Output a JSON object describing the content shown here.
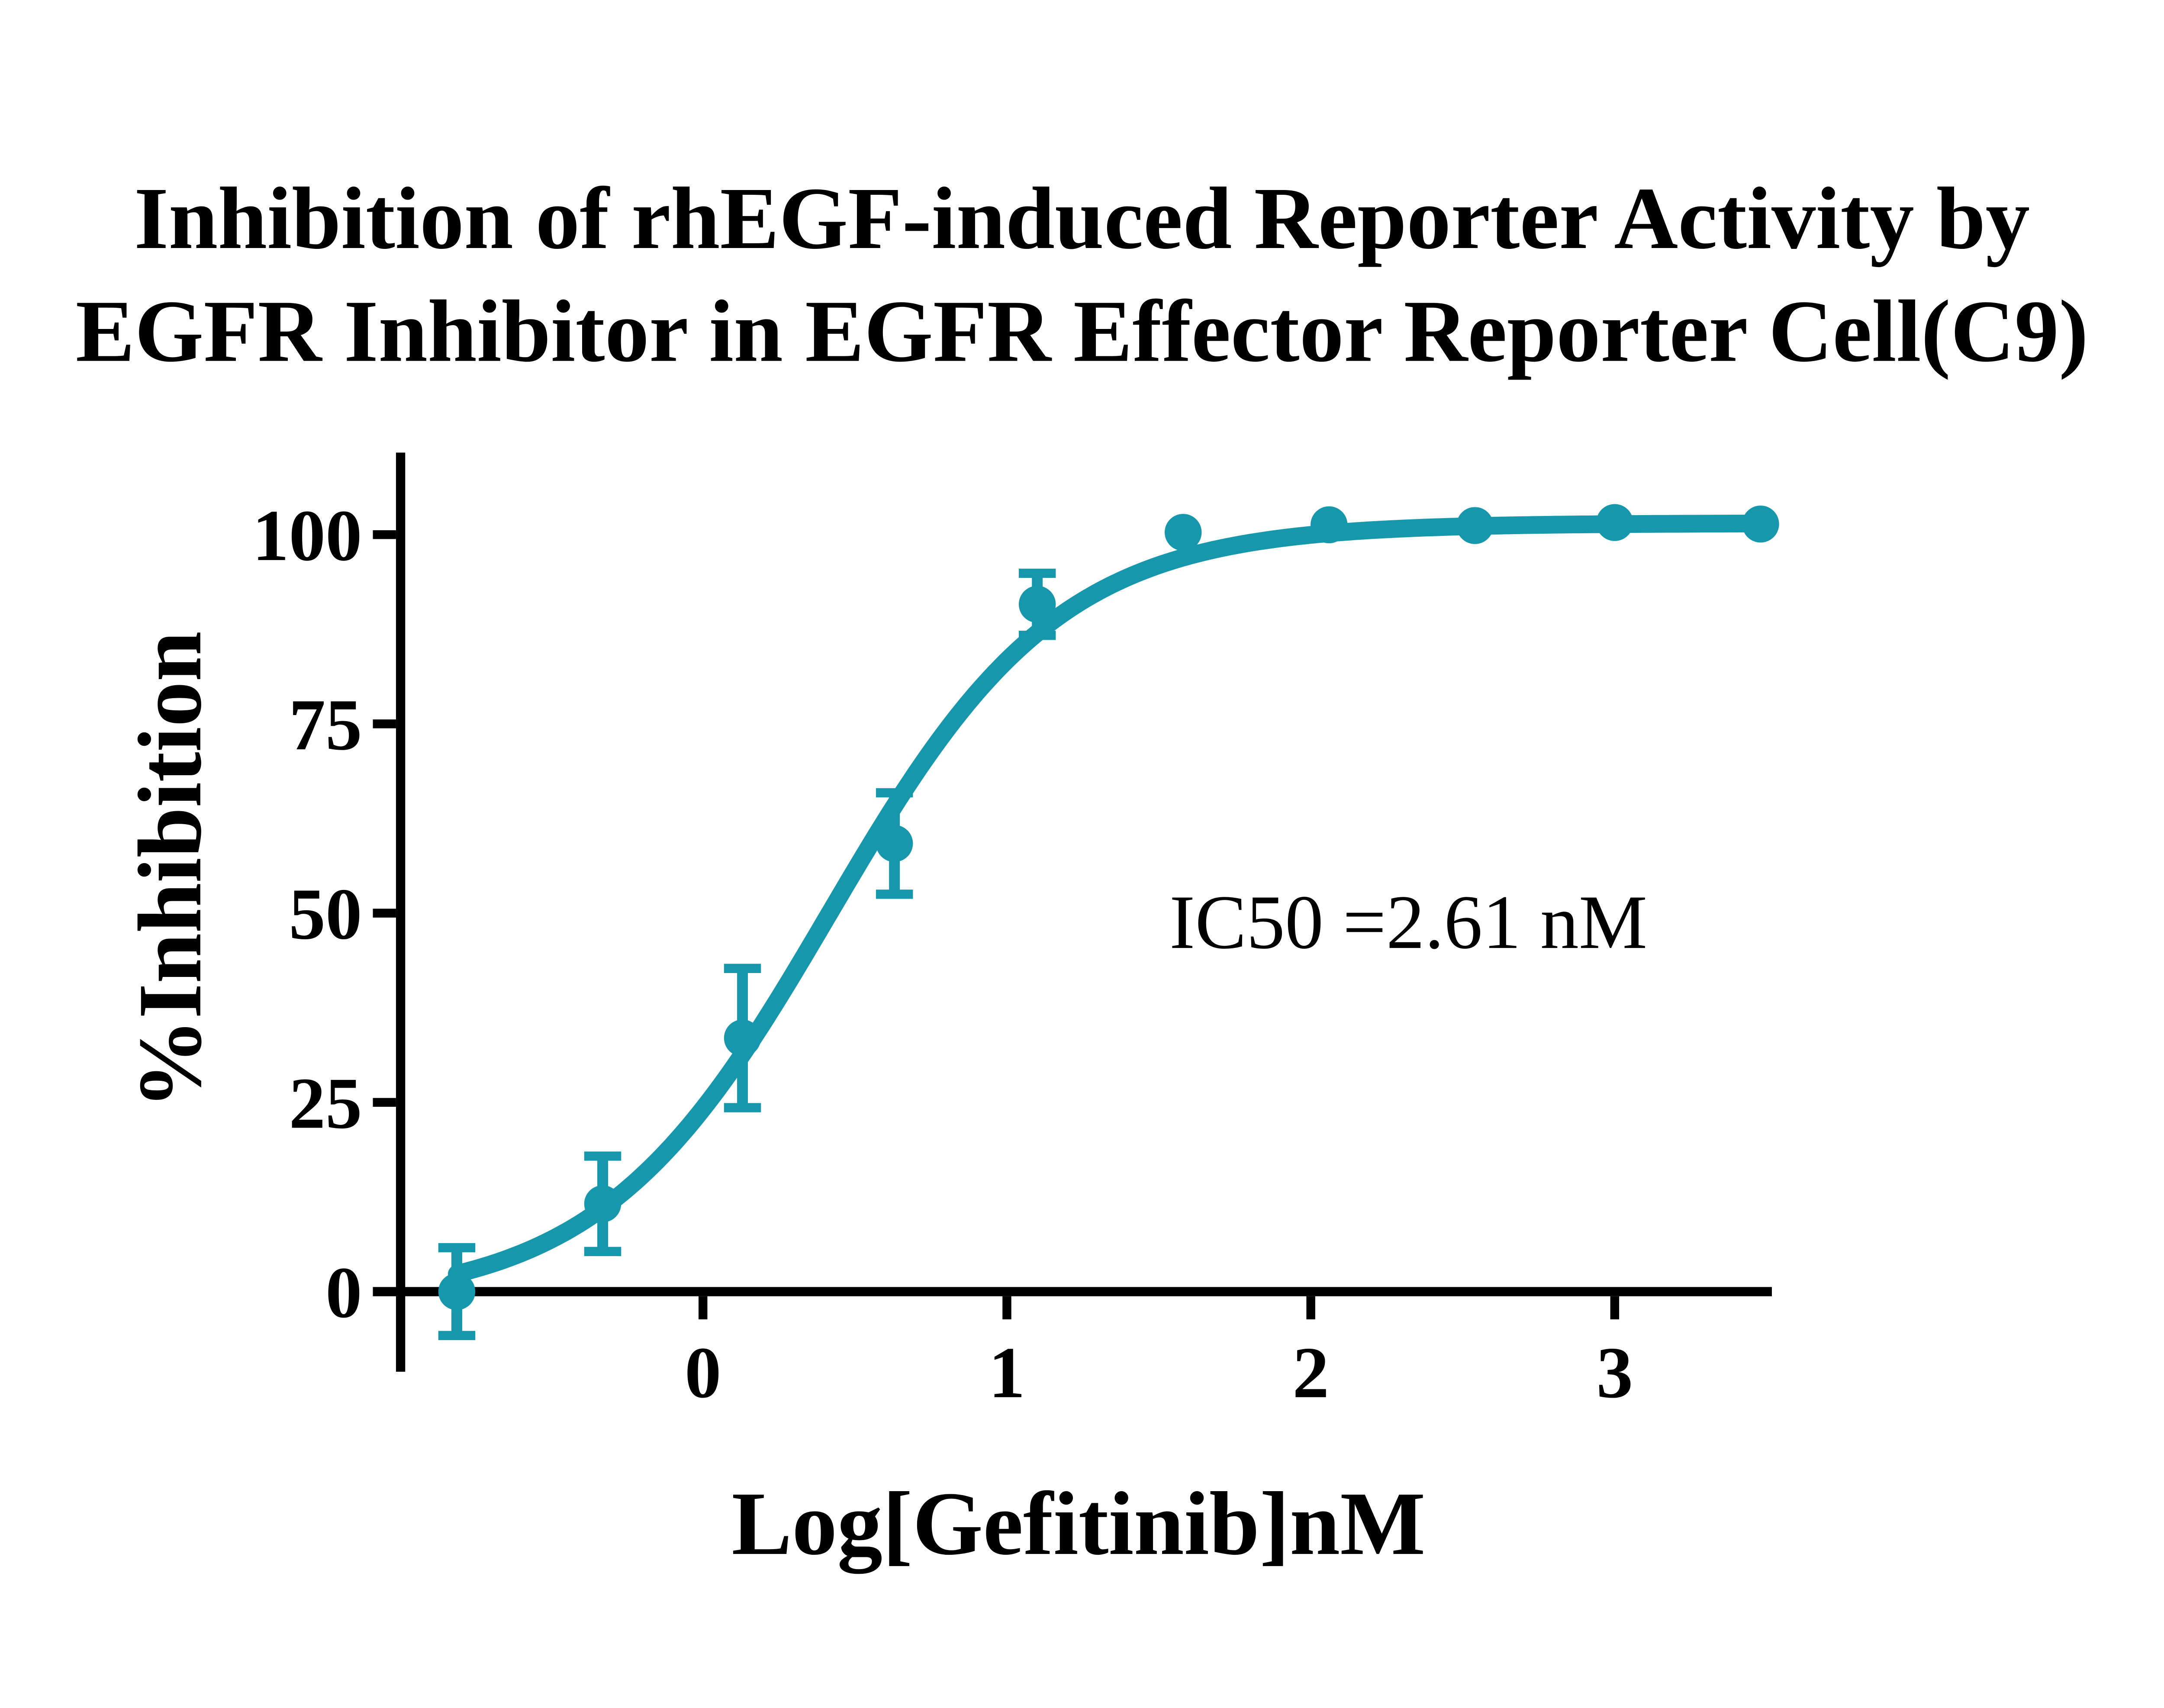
{
  "title": {
    "line1": "Inhibition of rhEGF-induced Reporter Activity by",
    "line2": "EGFR Inhibitor in EGFR Effector Reporter Cell(C9)"
  },
  "colors": {
    "series_teal": "#1797AB",
    "axis_black": "#000000",
    "background": "#FFFFFF"
  },
  "chart_data": {
    "type": "scatter",
    "title": "Inhibition of rhEGF-induced Reporter Activity by EGFR Inhibitor in EGFR Effector Reporter Cell(C9)",
    "xlabel": "Log[Gefitinib]nM",
    "ylabel": "%Inhibition",
    "x_ticks": [
      0,
      1,
      2,
      3
    ],
    "y_ticks": [
      100,
      75,
      50,
      25,
      0
    ],
    "xlim": [
      -1.09,
      3.52
    ],
    "ylim": [
      -10.7,
      110.8
    ],
    "grid": false,
    "legend": "none",
    "series": [
      {
        "name": "Gefitinib",
        "x": [
          -0.81,
          -0.33,
          0.13,
          0.63,
          1.1,
          1.58,
          2.06,
          2.54,
          3.0,
          3.48
        ],
        "y": [
          0,
          11.6,
          33.5,
          59.2,
          90.8,
          100.3,
          101.3,
          101.2,
          101.6,
          101.4
        ],
        "yerr": [
          5.8,
          6.3,
          9.2,
          6.7,
          4.1,
          null,
          null,
          null,
          null,
          null
        ]
      }
    ],
    "fit": {
      "model": "4PL",
      "bottom": -1.5,
      "top": 101.5,
      "log_ic50": 0.4166,
      "hill_slope": 1.15,
      "curve_x_range": [
        -0.81,
        3.48
      ]
    },
    "annotation": "IC50 =2.61 nM",
    "ic50_nM": 2.61
  }
}
